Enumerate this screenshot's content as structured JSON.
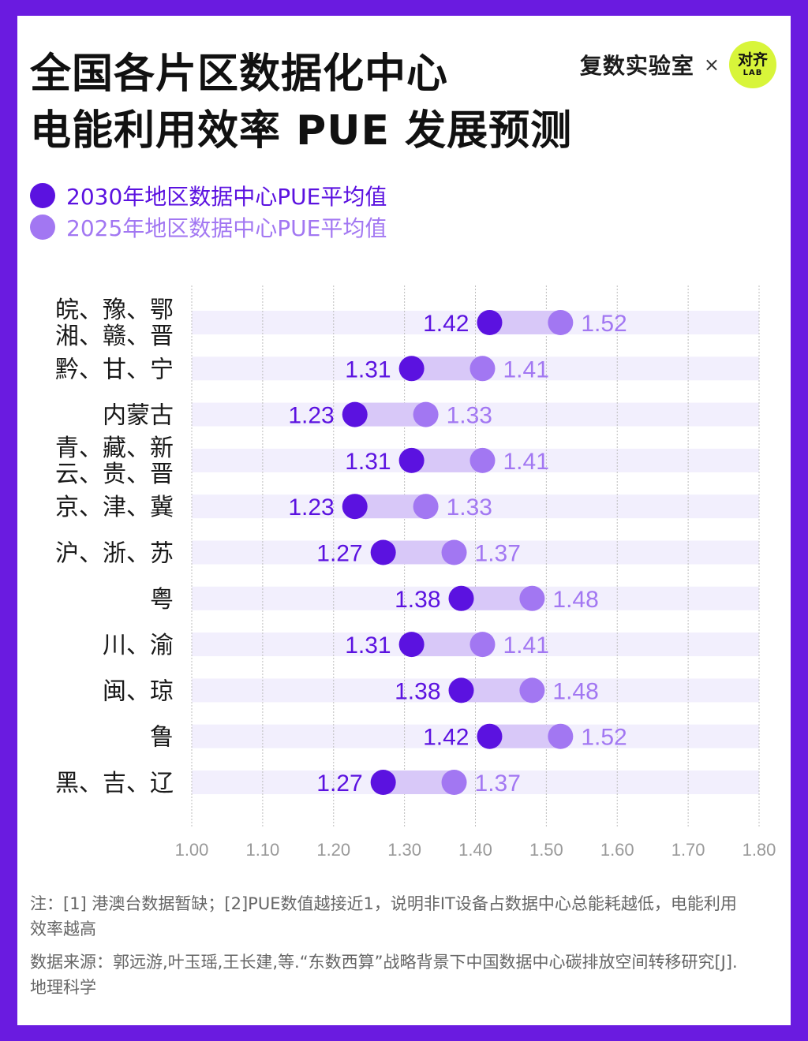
{
  "title_line1": "全国各片区数据化中心",
  "title_line2": "电能利用效率 PUE 发展预测",
  "brand": {
    "name": "复数实验室",
    "times": "×",
    "logo_text": "对齐",
    "logo_sub": "LAB"
  },
  "colors": {
    "accent": "#5b12e0",
    "light": "#a277f2",
    "row_band": "#f2effd",
    "bar_fill": "#d8c8f8",
    "border": "#6a1be0"
  },
  "chart_data": {
    "type": "dumbbell",
    "series": [
      {
        "name": "2030年地区数据中心PUE平均值",
        "values": [
          1.42,
          1.31,
          1.23,
          1.31,
          1.23,
          1.27,
          1.38,
          1.31,
          1.38,
          1.42,
          1.27
        ]
      },
      {
        "name": "2025年地区数据中心PUE平均值",
        "values": [
          1.52,
          1.41,
          1.33,
          1.41,
          1.33,
          1.37,
          1.48,
          1.41,
          1.48,
          1.52,
          1.37
        ]
      }
    ],
    "categories": [
      [
        "皖、豫、鄂",
        "湘、赣、晋"
      ],
      [
        "黔、甘、宁"
      ],
      [
        "内蒙古"
      ],
      [
        "青、藏、新",
        "云、贵、晋"
      ],
      [
        "京、津、冀"
      ],
      [
        "沪、浙、苏"
      ],
      [
        "粤"
      ],
      [
        "川、渝"
      ],
      [
        "闽、琼"
      ],
      [
        "鲁"
      ],
      [
        "黑、吉、辽"
      ]
    ],
    "xlim": [
      1.0,
      1.8
    ],
    "xticks": [
      "1.00",
      "1.10",
      "1.20",
      "1.30",
      "1.40",
      "1.50",
      "1.60",
      "1.70",
      "1.80"
    ],
    "grid": true
  },
  "notes": {
    "note": "注：[1] 港澳台数据暂缺；[2]PUE数值越接近1，说明非IT设备占数据中心总能耗越低，电能利用效率越高",
    "source": "数据来源：郭远游,叶玉瑶,王长建,等.“东数西算”战略背景下中国数据中心碳排放空间转移研究[J].地理科学"
  }
}
